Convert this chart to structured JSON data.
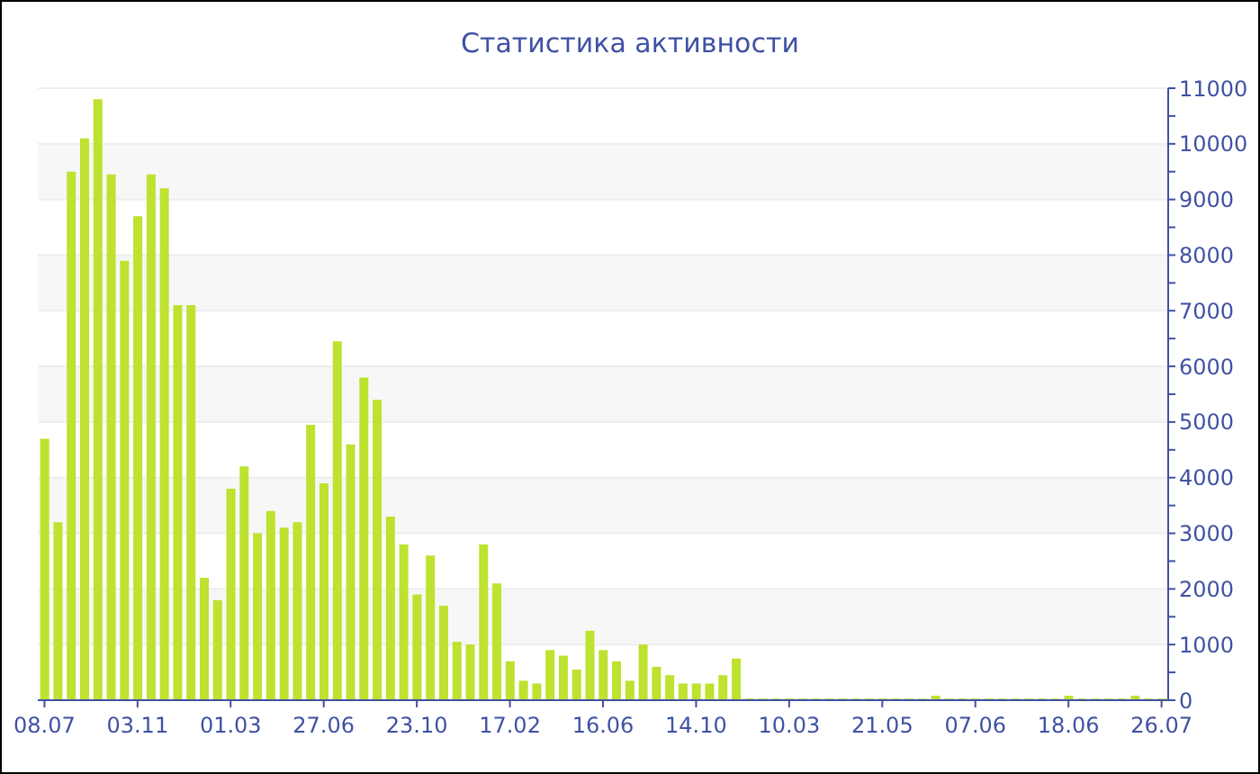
{
  "chart_data": {
    "type": "bar",
    "title": "Статистика активности",
    "categories": [
      "08.07",
      null,
      null,
      null,
      null,
      null,
      null,
      "03.11",
      null,
      null,
      null,
      null,
      null,
      null,
      "01.03",
      null,
      null,
      null,
      null,
      null,
      null,
      "27.06",
      null,
      null,
      null,
      null,
      null,
      null,
      "23.10",
      null,
      null,
      null,
      null,
      null,
      null,
      "17.02",
      null,
      null,
      null,
      null,
      null,
      null,
      "16.06",
      null,
      null,
      null,
      null,
      null,
      null,
      "14.10",
      null,
      null,
      null,
      null,
      null,
      null,
      "10.03",
      null,
      null,
      null,
      null,
      null,
      null,
      "21.05",
      null,
      null,
      null,
      null,
      null,
      null,
      "07.06",
      null,
      null,
      null,
      null,
      null,
      null,
      "18.06",
      null,
      null,
      null,
      null,
      null,
      null,
      "26.07"
    ],
    "values": [
      4700,
      3200,
      9500,
      10100,
      10800,
      9450,
      7900,
      8700,
      9450,
      9200,
      7100,
      7100,
      2200,
      1800,
      3800,
      4200,
      3000,
      3400,
      3100,
      3200,
      4950,
      3900,
      6450,
      4600,
      5800,
      5400,
      3300,
      2800,
      1900,
      2600,
      1700,
      1050,
      1000,
      2800,
      2100,
      700,
      350,
      300,
      900,
      800,
      550,
      1250,
      900,
      700,
      350,
      1000,
      600,
      450,
      300,
      300,
      300,
      450,
      750,
      30,
      30,
      30,
      30,
      30,
      30,
      30,
      30,
      30,
      30,
      30,
      30,
      30,
      30,
      80,
      30,
      30,
      30,
      30,
      30,
      30,
      30,
      30,
      30,
      80,
      30,
      30,
      30,
      30,
      80,
      30,
      30
    ],
    "color": "#bde22f",
    "ylim": [
      0,
      11000
    ],
    "yticks": [
      0,
      {
        "value": 500,
        "label": null
      },
      1000,
      {
        "value": 1500,
        "label": null
      },
      2000,
      {
        "value": 2500,
        "label": null
      },
      3000,
      {
        "value": 3500,
        "label": null
      },
      4000,
      {
        "value": 4500,
        "label": null
      },
      5000,
      {
        "value": 5500,
        "label": null
      },
      6000,
      {
        "value": 6500,
        "label": null
      },
      7000,
      {
        "value": 7500,
        "label": null
      },
      8000,
      {
        "value": 8500,
        "label": null
      },
      9000,
      {
        "value": 9500,
        "label": null
      },
      10000,
      {
        "value": 10500,
        "label": null
      },
      11000
    ],
    "grid": "y",
    "legend": false
  }
}
